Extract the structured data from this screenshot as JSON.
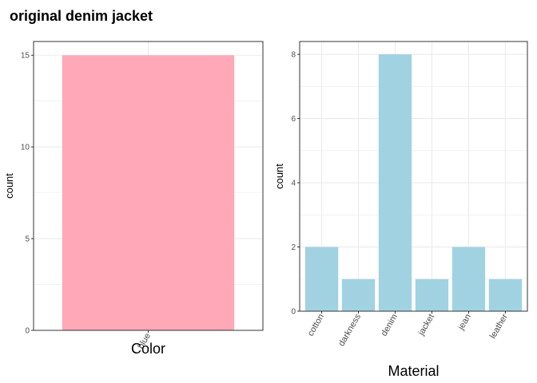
{
  "title": "original denim jacket",
  "chart_data": [
    {
      "type": "bar",
      "categories": [
        "blue"
      ],
      "values": [
        15
      ],
      "xlabel": "Color",
      "ylabel": "count",
      "ylim": [
        0,
        15.75
      ],
      "yticks": [
        0,
        5,
        10,
        15
      ],
      "bar_color": "#FFA8B7",
      "grid": true,
      "x_tick_rotation": -60
    },
    {
      "type": "bar",
      "categories": [
        "cotton",
        "darkness",
        "denim",
        "jacket",
        "jean",
        "leather"
      ],
      "values": [
        2,
        1,
        8,
        1,
        2,
        1
      ],
      "xlabel": "Material",
      "ylabel": "count",
      "ylim": [
        0,
        8.4
      ],
      "yticks": [
        0,
        2,
        4,
        6,
        8
      ],
      "bar_color": "#A1D2E2",
      "grid": true,
      "x_tick_rotation": -60
    }
  ]
}
